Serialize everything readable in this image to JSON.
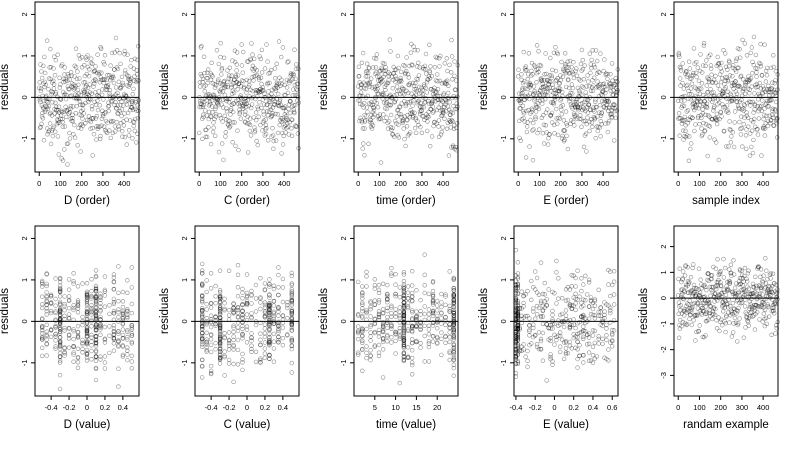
{
  "figure": {
    "type": "residual-diagnostic-grid",
    "layout": {
      "rows": 2,
      "cols": 5
    },
    "point_style": "open-circle",
    "point_color": "#000000",
    "reference_line": 0
  },
  "chart_data": [
    {
      "id": "p1",
      "type": "scatter",
      "xlabel": "D (order)",
      "ylabel": "residuals",
      "xlim": [
        -20,
        470
      ],
      "ylim": [
        -1.8,
        2.3
      ],
      "xticks": [
        0,
        100,
        200,
        300,
        400
      ],
      "yticks": [
        -1,
        0,
        1,
        2
      ],
      "n": 470,
      "pattern": "order",
      "x_step": 1,
      "seed": 11
    },
    {
      "id": "p2",
      "type": "scatter",
      "xlabel": "C (order)",
      "ylabel": "residuals",
      "xlim": [
        -20,
        470
      ],
      "ylim": [
        -1.8,
        2.3
      ],
      "xticks": [
        0,
        100,
        200,
        300,
        400
      ],
      "yticks": [
        -1,
        0,
        1,
        2
      ],
      "n": 470,
      "pattern": "order",
      "x_step": 1,
      "seed": 23
    },
    {
      "id": "p3",
      "type": "scatter",
      "xlabel": "time (order)",
      "ylabel": "residuals",
      "xlim": [
        -20,
        470
      ],
      "ylim": [
        -1.8,
        2.3
      ],
      "xticks": [
        0,
        100,
        200,
        300,
        400
      ],
      "yticks": [
        -1,
        0,
        1,
        2
      ],
      "n": 470,
      "pattern": "order",
      "x_step": 1,
      "seed": 37
    },
    {
      "id": "p4",
      "type": "scatter",
      "xlabel": "E (order)",
      "ylabel": "residuals",
      "xlim": [
        -20,
        470
      ],
      "ylim": [
        -1.8,
        2.3
      ],
      "xticks": [
        0,
        100,
        200,
        300,
        400
      ],
      "yticks": [
        -1,
        0,
        1,
        2
      ],
      "n": 470,
      "pattern": "order",
      "x_step": 1,
      "seed": 41
    },
    {
      "id": "p5",
      "type": "scatter",
      "xlabel": "sample index",
      "ylabel": "residuals",
      "xlim": [
        -20,
        470
      ],
      "ylim": [
        -1.8,
        2.3
      ],
      "xticks": [
        0,
        100,
        200,
        300,
        400
      ],
      "yticks": [
        -1,
        0,
        1,
        2
      ],
      "n": 470,
      "pattern": "order",
      "x_step": 1,
      "seed": 53
    },
    {
      "id": "p6",
      "type": "scatter",
      "xlabel": "D (value)",
      "ylabel": "residuals",
      "xlim": [
        -0.58,
        0.58
      ],
      "ylim": [
        -1.8,
        2.3
      ],
      "xticks": [
        -0.4,
        -0.2,
        0.0,
        0.2,
        0.4
      ],
      "yticks": [
        -1,
        0,
        1,
        2
      ],
      "n": 470,
      "pattern": "value",
      "x_range": [
        -0.5,
        0.5
      ],
      "x_grid": 0.05,
      "x_clusters": [
        -0.3,
        0.0,
        0.1
      ],
      "seed": 61
    },
    {
      "id": "p7",
      "type": "scatter",
      "xlabel": "C (value)",
      "ylabel": "residuals",
      "xlim": [
        -0.58,
        0.58
      ],
      "ylim": [
        -1.8,
        2.3
      ],
      "xticks": [
        -0.4,
        -0.2,
        0.0,
        0.2,
        0.4
      ],
      "yticks": [
        -1,
        0,
        1,
        2
      ],
      "n": 470,
      "pattern": "value",
      "x_range": [
        -0.5,
        0.5
      ],
      "x_grid": 0.05,
      "x_clusters": [
        -0.5,
        -0.3,
        0.25,
        0.5
      ],
      "seed": 71
    },
    {
      "id": "p8",
      "type": "scatter",
      "xlabel": "time (value)",
      "ylabel": "residuals",
      "xlim": [
        0,
        25
      ],
      "ylim": [
        -1.8,
        2.3
      ],
      "xticks": [
        5,
        10,
        15,
        20
      ],
      "yticks": [
        -1,
        0,
        1,
        2
      ],
      "n": 470,
      "pattern": "value",
      "x_range": [
        1,
        24
      ],
      "x_grid": 1,
      "x_clusters": [
        12,
        24
      ],
      "seed": 83
    },
    {
      "id": "p9",
      "type": "scatter",
      "xlabel": "E (value)",
      "ylabel": "residuals",
      "xlim": [
        -0.42,
        0.66
      ],
      "ylim": [
        -1.8,
        2.3
      ],
      "xticks": [
        -0.4,
        -0.2,
        0.0,
        0.2,
        0.4,
        0.6
      ],
      "yticks": [
        -1,
        0,
        1,
        2
      ],
      "n": 470,
      "pattern": "value",
      "x_range": [
        -0.4,
        0.62
      ],
      "x_grid": 0.02,
      "x_clusters": [
        -0.4,
        -0.38
      ],
      "seed": 97
    },
    {
      "id": "p10",
      "type": "scatter",
      "xlabel": "randam example",
      "ylabel": "residuals",
      "xlim": [
        -20,
        470
      ],
      "ylim": [
        -3.8,
        2.8
      ],
      "xticks": [
        0,
        100,
        200,
        300,
        400
      ],
      "yticks": [
        -3,
        -2,
        -1,
        0,
        1,
        2
      ],
      "n": 470,
      "pattern": "order",
      "x_step": 1,
      "y_scale": 1.25,
      "seed": 101
    }
  ]
}
